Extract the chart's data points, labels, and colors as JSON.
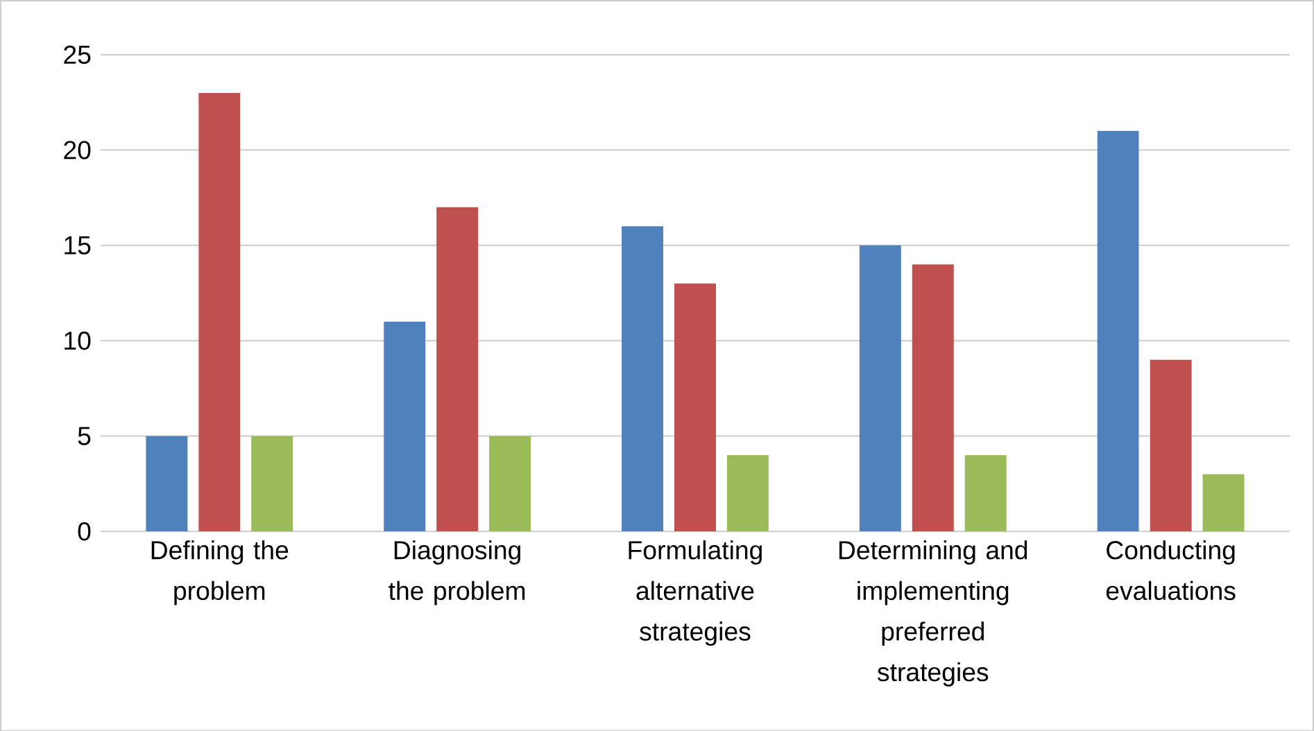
{
  "chart_data": {
    "type": "bar",
    "categories": [
      "Defining the problem",
      "Diagnosing the problem",
      "Formulating alternative strategies",
      "Determining and implementing preferred strategies",
      "Conducting evaluations"
    ],
    "series": [
      {
        "color": "#4f81bd",
        "values": [
          5,
          11,
          16,
          15,
          21
        ]
      },
      {
        "color": "#c0504d",
        "values": [
          23,
          17,
          13,
          14,
          9
        ]
      },
      {
        "color": "#9bbb59",
        "values": [
          5,
          5,
          4,
          4,
          3
        ]
      }
    ],
    "ylim": [
      0,
      25
    ],
    "yticks": [
      0,
      5,
      10,
      15,
      20,
      25
    ],
    "grid": "y"
  }
}
